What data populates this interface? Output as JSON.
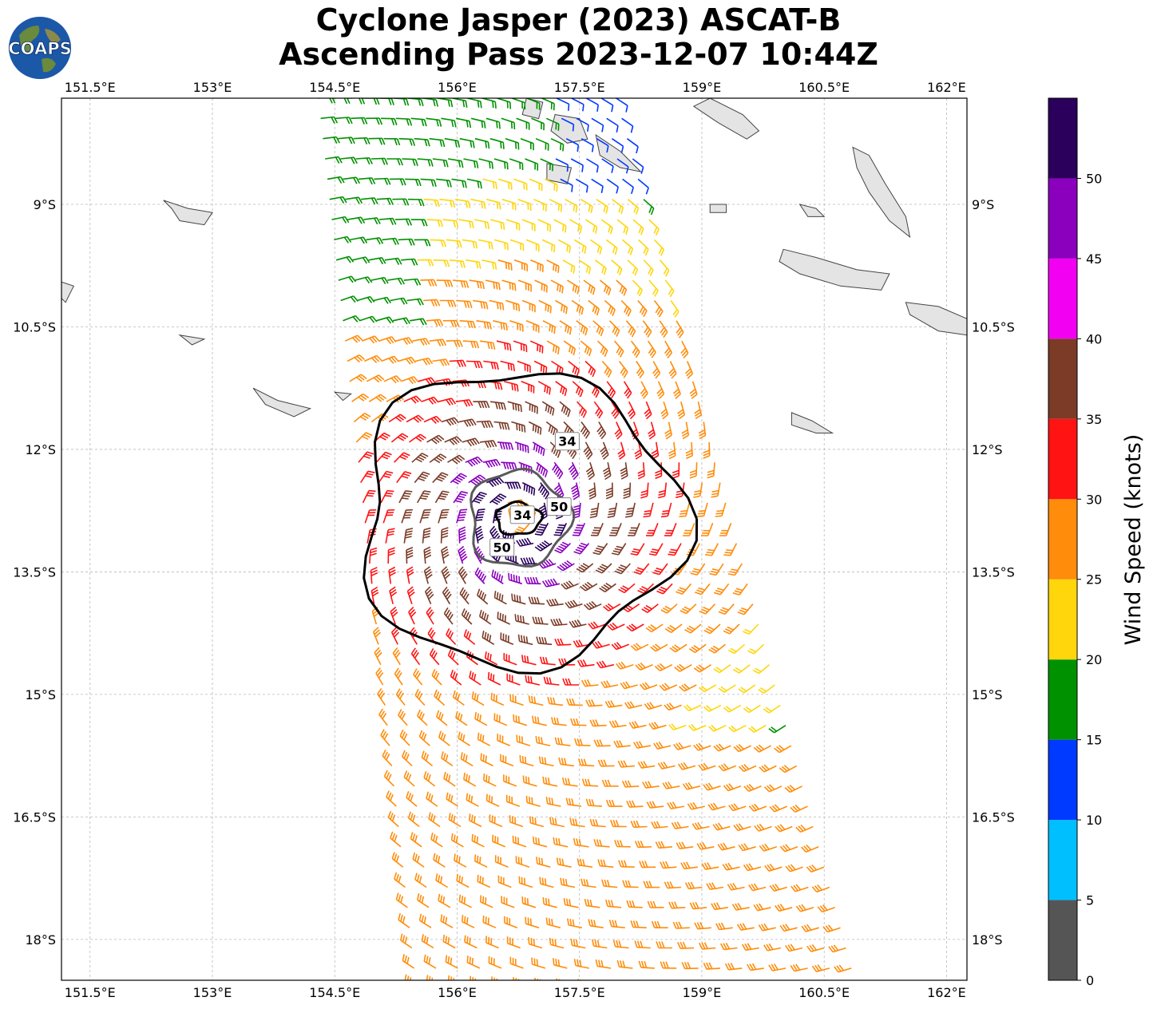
{
  "title": {
    "line1": "Cyclone Jasper (2023) ASCAT-B",
    "line2": "Ascending Pass 2023-12-07 10:44Z"
  },
  "logo": {
    "text": "COAPS",
    "icon": "globe-logo-icon"
  },
  "map": {
    "projection": "lon-lat",
    "lon_range": [
      151.15,
      162.25
    ],
    "lat_range": [
      -18.5,
      -7.7
    ],
    "gridlines": true,
    "x_ticks": [
      {
        "value": 151.5,
        "label": "151.5°E"
      },
      {
        "value": 153,
        "label": "153°E"
      },
      {
        "value": 154.5,
        "label": "154.5°E"
      },
      {
        "value": 156,
        "label": "156°E"
      },
      {
        "value": 157.5,
        "label": "157.5°E"
      },
      {
        "value": 159,
        "label": "159°E"
      },
      {
        "value": 160.5,
        "label": "160.5°E"
      },
      {
        "value": 162,
        "label": "162°E"
      }
    ],
    "y_ticks": [
      {
        "value": -9,
        "label": "9°S"
      },
      {
        "value": -10.5,
        "label": "10.5°S"
      },
      {
        "value": -12,
        "label": "12°S"
      },
      {
        "value": -13.5,
        "label": "13.5°S"
      },
      {
        "value": -15,
        "label": "15°S"
      },
      {
        "value": -16.5,
        "label": "16.5°S"
      },
      {
        "value": -18,
        "label": "18°S"
      }
    ],
    "storm_center": {
      "lon": 156.75,
      "lat": -12.85
    },
    "swath_corners": [
      [
        154.3,
        -7.7
      ],
      [
        157.95,
        -7.7
      ],
      [
        160.9,
        -18.6
      ],
      [
        155.5,
        -18.6
      ]
    ],
    "wind_barbs": "ASCAT-B scatterometer wind barbs colored by speed",
    "contours": [
      {
        "level": 34,
        "color": "#000000",
        "label": "34"
      },
      {
        "level": 50,
        "color": "#5a5a5a",
        "label": "50"
      },
      {
        "level": 50,
        "color": "#5a5a5a",
        "label": "50"
      },
      {
        "level": 34,
        "color": "#000000",
        "label": "34"
      }
    ]
  },
  "colorbar": {
    "label": "Wind Speed (knots)",
    "range": [
      0,
      55
    ],
    "bins": [
      {
        "min": 0,
        "max": 5,
        "color": "#555555"
      },
      {
        "min": 5,
        "max": 10,
        "color": "#00bfff"
      },
      {
        "min": 10,
        "max": 15,
        "color": "#0039ff"
      },
      {
        "min": 15,
        "max": 20,
        "color": "#009100"
      },
      {
        "min": 20,
        "max": 25,
        "color": "#ffd60c"
      },
      {
        "min": 25,
        "max": 30,
        "color": "#ff8c0a"
      },
      {
        "min": 30,
        "max": 35,
        "color": "#ff1313"
      },
      {
        "min": 35,
        "max": 40,
        "color": "#7b3b27"
      },
      {
        "min": 40,
        "max": 45,
        "color": "#f200f2"
      },
      {
        "min": 45,
        "max": 50,
        "color": "#8a00bd"
      },
      {
        "min": 50,
        "max": 55,
        "color": "#2a005c"
      }
    ],
    "ticks": [
      "0",
      "5",
      "10",
      "15",
      "20",
      "25",
      "30",
      "35",
      "40",
      "45",
      "50"
    ]
  }
}
